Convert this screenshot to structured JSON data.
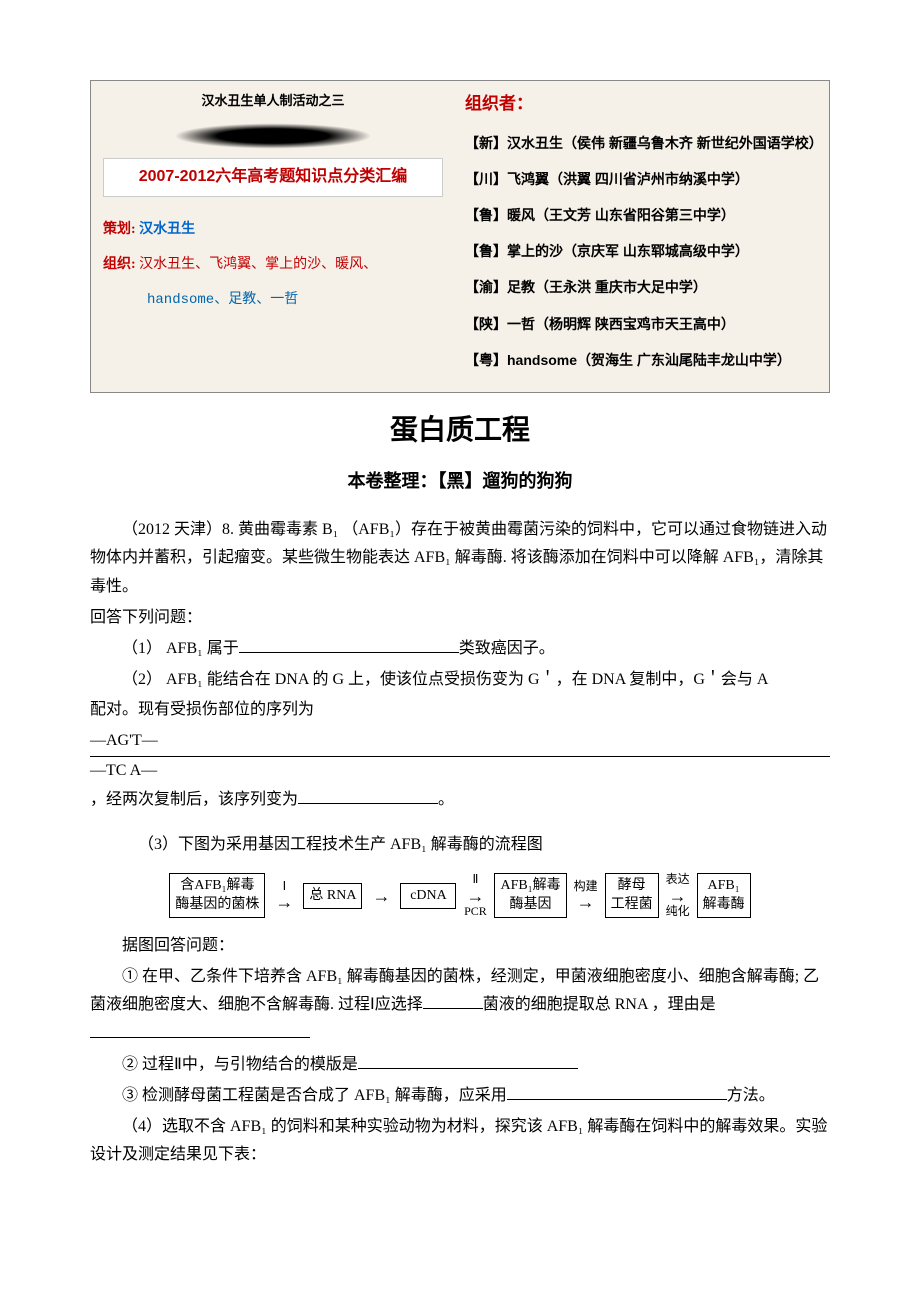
{
  "banner": {
    "top_caption": "汉水丑生单人制活动之三",
    "title": "2007-2012六年高考题知识点分类汇编",
    "plan_label": "策划:",
    "plan_value": "汉水丑生",
    "org_label": "组织:",
    "org_value": "汉水丑生、飞鸿翼、掌上的沙、暖风、",
    "org_value2": "handsome、足教、一哲",
    "right_title": "组织者：",
    "organizers": [
      "【新】汉水丑生（侯伟 新疆乌鲁木齐 新世纪外国语学校）",
      "【川】飞鸿翼（洪翼 四川省泸州市纳溪中学）",
      "【鲁】暖风（王文芳 山东省阳谷第三中学）",
      "【鲁】掌上的沙（京庆军 山东郓城高级中学）",
      "【渝】足教（王永洪 重庆市大足中学）",
      "【陕】一哲（杨明辉 陕西宝鸡市天王高中）",
      "【粤】handsome（贺海生 广东汕尾陆丰龙山中学）"
    ]
  },
  "title": "蛋白质工程",
  "subtitle": "本卷整理：【黑】遛狗的狗狗",
  "intro": {
    "line1": "（2012 天津）8. 黄曲霉毒素 B₁ （AFB₁）存在于被黄曲霉菌污染的饲料中，它可以通过食物链进入动物体内并蓄积，引起瘤变。某些微生物能表达 AFB₁ 解毒酶. 将该酶添加在饲料中可以降解 AFB₁，清除其毒性。",
    "prompt": "回答下列问题："
  },
  "q1": {
    "pre": "（1） AFB₁ 属于",
    "post": "类致癌因子。"
  },
  "q2": {
    "line1": "（2） AFB₁ 能结合在 DNA 的 G 上，使该位点受损伤变为 G＇，在 DNA 复制中，G＇会与 A",
    "line2a": "配对。现有受损伤部位的序列为",
    "seq_top": "—AG'T—",
    "seq_bot": "—TC A—",
    "line2b": "，经两次复制后，该序列变为",
    "line2c": "。"
  },
  "q3": {
    "intro": "（3）下图为采用基因工程技术生产 AFB₁ 解毒酶的流程图",
    "flow": {
      "box1a": "含AFB₁解毒",
      "box1b": "酶基因的菌株",
      "a1": "Ⅰ",
      "box2": "总 RNA",
      "box3": "cDNA",
      "a3t": "Ⅱ",
      "a3b": "PCR",
      "box4a": "AFB₁解毒",
      "box4b": "酶基因",
      "a4": "构建",
      "box5a": "酵母",
      "box5b": "工程菌",
      "a5t": "表达",
      "a5b": "纯化",
      "box6a": "AFB₁",
      "box6b": "解毒酶"
    },
    "prompt": "据图回答问题：",
    "s1a": "① 在甲、乙条件下培养含 AFB₁ 解毒酶基因的菌株，经测定，甲菌液细胞密度小、细胞含解毒酶; 乙菌液细胞密度大、细胞不含解毒酶. 过程Ⅰ应选择",
    "s1b": "菌液的细胞提取总 RNA ，理由是",
    "s2a": "② 过程Ⅱ中，与引物结合的模版是",
    "s3a": "③ 检测酵母菌工程菌是否合成了 AFB₁ 解毒酶，应采用",
    "s3b": "方法。"
  },
  "q4": "（4）选取不含 AFB₁ 的饲料和某种实验动物为材料，探究该 AFB₁ 解毒酶在饲料中的解毒效果。实验设计及测定结果见下表：",
  "colors": {
    "red": "#c00000",
    "blue": "#0066cc",
    "body_text": "#000000",
    "banner_bg": "#f5f0e8"
  }
}
